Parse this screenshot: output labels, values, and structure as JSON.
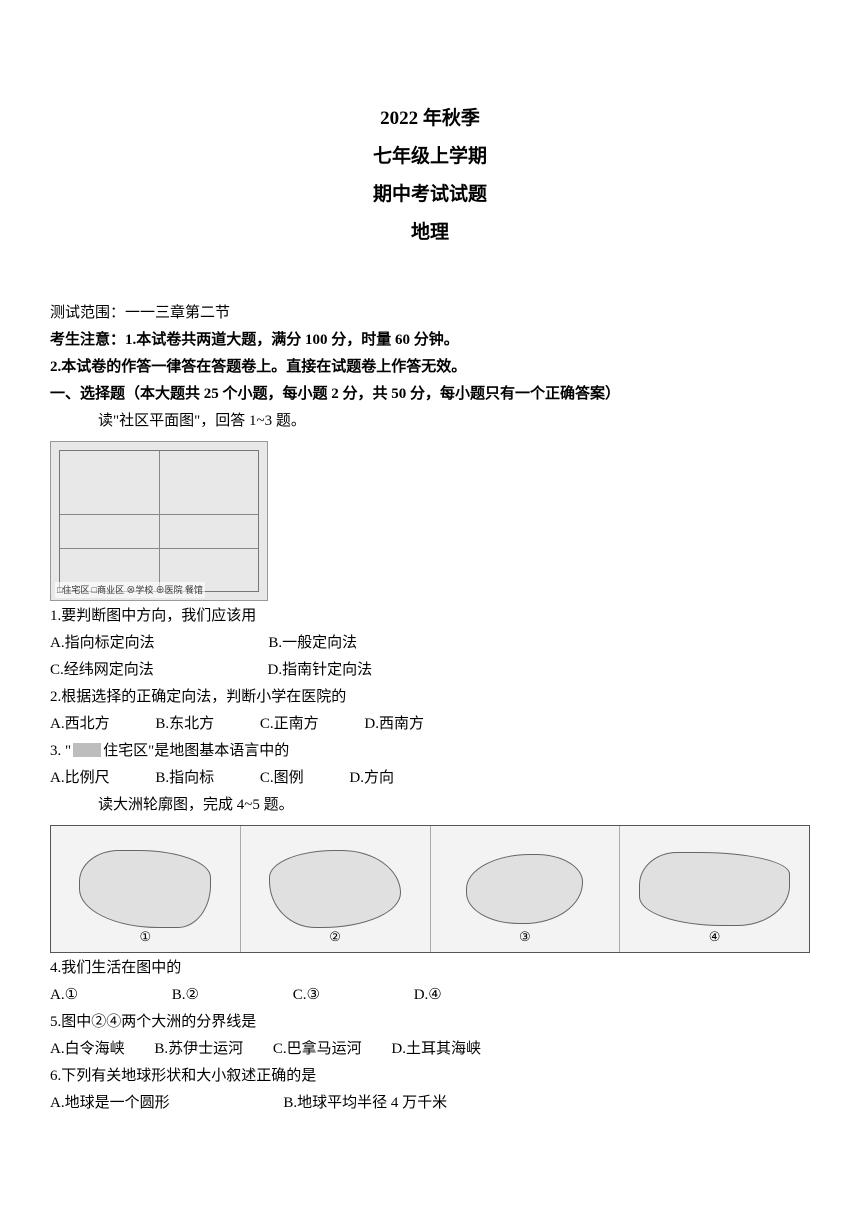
{
  "header": {
    "line1": "2022 年秋季",
    "line2": "七年级上学期",
    "line3": "期中考试试题",
    "line4": "地理"
  },
  "scope": "测试范围：一一三章第二节",
  "notice1": "考生注意：1.本试卷共两道大题，满分 100 分，时量 60 分钟。",
  "notice2": "2.本试卷的作答一律答在答题卷上。直接在试题卷上作答无效。",
  "section1": "一、选择题（本大题共 25 个小题，每小题 2 分，共 50 分，每小题只有一个正确答案）",
  "intro_1_3": "读\"社区平面图\"，回答 1~3 题。",
  "map_legend": "□住宅区  □商业区  ⊗学校  ⊕医院  餐馆",
  "q1": {
    "text": "1.要判断图中方向，我们应该用",
    "A": "A.指向标定向法",
    "B": "B.一般定向法",
    "C": "C.经纬网定向法",
    "D": "D.指南针定向法"
  },
  "q2": {
    "text": "2.根据选择的正确定向法，判断小学在医院的",
    "A": "A.西北方",
    "B": "B.东北方",
    "C": "C.正南方",
    "D": "D.西南方"
  },
  "q3": {
    "prefix": "3. \"",
    "suffix": "住宅区\"是地图基本语言中的",
    "A": "A.比例尺",
    "B": "B.指向标",
    "C": "C.图例",
    "D": "D.方向"
  },
  "intro_4_5": "读大洲轮廓图，完成 4~5 题。",
  "continent_nums": [
    "①",
    "②",
    "③",
    "④"
  ],
  "q4": {
    "text": "4.我们生活在图中的",
    "A": "A.①",
    "B": "B.②",
    "C": "C.③",
    "D": "D.④"
  },
  "q5": {
    "text": "5.图中②④两个大洲的分界线是",
    "A": "A.白令海峡",
    "B": "B.苏伊士运河",
    "C": "C.巴拿马运河",
    "D": "D.土耳其海峡"
  },
  "q6": {
    "text": "6.下列有关地球形状和大小叙述正确的是",
    "A": "A.地球是一个圆形",
    "B": "B.地球平均半径 4 万千米"
  }
}
